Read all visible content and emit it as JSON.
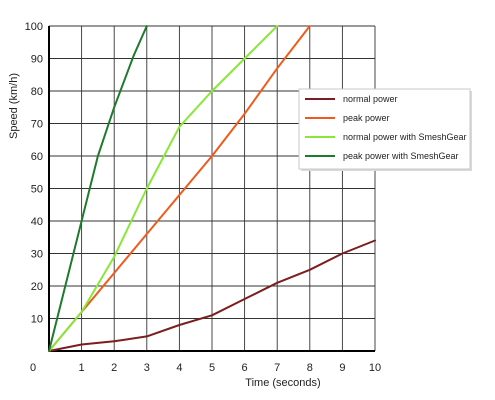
{
  "chart_data": {
    "type": "line",
    "title": "",
    "xlabel": "Time (seconds)",
    "ylabel": "Speed (km/h)",
    "xlim": [
      0,
      10
    ],
    "ylim": [
      0,
      100
    ],
    "x_ticks": [
      "0",
      "1",
      "2",
      "3",
      "4",
      "5",
      "6",
      "7",
      "8",
      "9",
      "10"
    ],
    "y_ticks": [
      "10",
      "20",
      "30",
      "40",
      "50",
      "60",
      "70",
      "80",
      "90",
      "100"
    ],
    "grid": true,
    "legend_position": "right",
    "series": [
      {
        "name": "normal power",
        "color": "#7a1f1f",
        "points": [
          [
            0,
            0
          ],
          [
            1,
            2
          ],
          [
            2,
            3
          ],
          [
            3,
            4.5
          ],
          [
            4,
            8
          ],
          [
            5,
            11
          ],
          [
            6,
            16
          ],
          [
            7,
            21
          ],
          [
            8,
            25
          ],
          [
            9,
            30
          ],
          [
            10,
            34
          ]
        ]
      },
      {
        "name": "peak power",
        "color": "#f05a1a",
        "points": [
          [
            0,
            0
          ],
          [
            1,
            12
          ],
          [
            2,
            24
          ],
          [
            3,
            36
          ],
          [
            4,
            48
          ],
          [
            5,
            60
          ],
          [
            6,
            73
          ],
          [
            7,
            87
          ],
          [
            8,
            100
          ]
        ]
      },
      {
        "name": "normal power with SmeshGear",
        "color": "#88e838",
        "points": [
          [
            0,
            0
          ],
          [
            1,
            12
          ],
          [
            2,
            29
          ],
          [
            3,
            50
          ],
          [
            4,
            69
          ],
          [
            5,
            80
          ],
          [
            6,
            90
          ],
          [
            7,
            100
          ]
        ]
      },
      {
        "name": "peak power with SmeshGear",
        "color": "#1e7a2c",
        "points": [
          [
            0,
            0
          ],
          [
            1,
            40
          ],
          [
            1.5,
            60
          ],
          [
            2,
            75
          ],
          [
            2.6,
            91
          ],
          [
            3,
            100
          ]
        ]
      }
    ]
  }
}
